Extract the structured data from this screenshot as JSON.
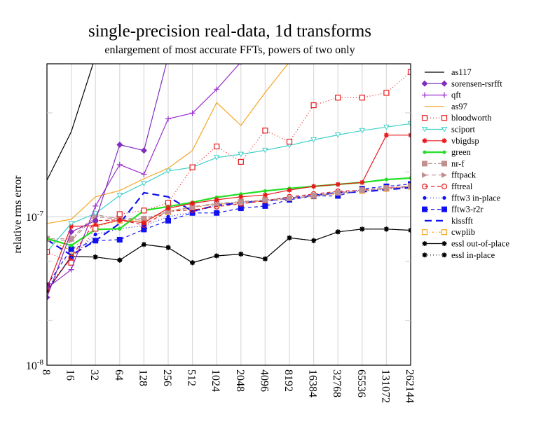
{
  "chart_data": {
    "type": "line",
    "title": "single-precision real-data, 1d transforms",
    "subtitle": "enlargement of most accurate FFTs, powers of two only",
    "xlabel": "",
    "ylabel": "relative rms error",
    "xscale": "log2",
    "yscale": "log10",
    "ylim": [
      1e-08,
      1.07e-06
    ],
    "grid": true,
    "legend_position": "right",
    "x": [
      8,
      16,
      32,
      64,
      128,
      256,
      512,
      1024,
      2048,
      4096,
      8192,
      16384,
      32768,
      65536,
      131072,
      262144
    ],
    "x_tick_labels": [
      "8",
      "16",
      "32",
      "64",
      "128",
      "256",
      "512",
      "1024",
      "2048",
      "4096",
      "8192",
      "16384",
      "32768",
      "65536",
      "131072",
      "262144"
    ],
    "y_tick_labels": [
      {
        "base": "10",
        "exp": "-7",
        "value": 1e-07
      },
      {
        "base": "10",
        "exp": "-8",
        "value": 1e-08
      }
    ],
    "series": [
      {
        "name": "as117",
        "color": "#000000",
        "dash": "",
        "marker": "none",
        "values": [
          1.76e-07,
          3.72e-07,
          1.2e-06,
          null,
          null,
          null,
          null,
          null,
          null,
          null,
          null,
          null,
          null,
          null,
          null,
          null
        ]
      },
      {
        "name": "sorensen-rsrfft",
        "color": "#7f2fbf",
        "dash": "",
        "marker": "diamond",
        "values": [
          2.86e-08,
          7.9e-08,
          9.4e-08,
          3.05e-07,
          2.79e-07,
          1.2e-06,
          null,
          null,
          null,
          null,
          null,
          null,
          null,
          null,
          null,
          null
        ]
      },
      {
        "name": "qft",
        "color": "#9b30d0",
        "dash": "",
        "marker": "plus",
        "values": [
          3.3e-08,
          4.4e-08,
          1.18e-07,
          2.24e-07,
          1.93e-07,
          4.56e-07,
          4.98e-07,
          7.21e-07,
          1.1e-06,
          null,
          null,
          null,
          null,
          null,
          null,
          null
        ]
      },
      {
        "name": "as97",
        "color": "#f5a623",
        "dash": "",
        "marker": "none",
        "values": [
          9e-08,
          9.6e-08,
          1.36e-07,
          1.5e-07,
          1.8e-07,
          2.12e-07,
          2.79e-07,
          5.86e-07,
          4.11e-07,
          6.86e-07,
          1.1e-06,
          null,
          null,
          null,
          null,
          null
        ]
      },
      {
        "name": "bloodworth",
        "color": "#e8191c",
        "dash": "1,3",
        "marker": "open-square",
        "values": [
          5.8e-08,
          4.9e-08,
          8.3e-08,
          1.04e-07,
          1.1e-07,
          1.24e-07,
          2.15e-07,
          2.97e-07,
          2.34e-07,
          3.8e-07,
          3.2e-07,
          5.63e-07,
          6.33e-07,
          6.33e-07,
          6.82e-07,
          9.42e-07
        ]
      },
      {
        "name": "sciport",
        "color": "#40d0c8",
        "dash": "",
        "marker": "triangle-down",
        "values": [
          5.8e-08,
          9e-08,
          1.05e-07,
          1.39e-07,
          1.67e-07,
          2.03e-07,
          2.15e-07,
          2.5e-07,
          2.63e-07,
          2.8e-07,
          3.02e-07,
          3.29e-07,
          3.55e-07,
          3.8e-07,
          4.01e-07,
          4.23e-07
        ]
      },
      {
        "name": "vbigdsp",
        "color": "#e8191c",
        "dash": "",
        "marker": "star",
        "values": [
          3.3e-08,
          8.6e-08,
          8.7e-08,
          9.5e-08,
          9.1e-08,
          1.14e-07,
          1.23e-07,
          1.3e-07,
          1.36e-07,
          1.4e-07,
          1.51e-07,
          1.6e-07,
          1.65e-07,
          1.7e-07,
          3.54e-07,
          3.54e-07
        ]
      },
      {
        "name": "green",
        "color": "#22e022",
        "dash": "",
        "marker": "dot",
        "values": [
          7.1e-08,
          6.4e-08,
          8.2e-08,
          8.3e-08,
          1.1e-07,
          1.17e-07,
          1.25e-07,
          1.35e-07,
          1.42e-07,
          1.49e-07,
          1.55e-07,
          1.6e-07,
          1.65e-07,
          1.7e-07,
          1.78e-07,
          1.82e-07
        ]
      },
      {
        "name": "nr-f",
        "color": "#c09090",
        "dash": "2,3,6,3",
        "marker": "filled-square",
        "values": [
          7.1e-08,
          7.1e-08,
          1.03e-07,
          9.7e-08,
          9.7e-08,
          1.09e-07,
          1.17e-07,
          1.23e-07,
          1.26e-07,
          1.3e-07,
          1.33e-07,
          1.39e-07,
          1.45e-07,
          1.51e-07,
          1.56e-07,
          1.61e-07
        ]
      },
      {
        "name": "fftpack",
        "color": "#c09090",
        "dash": "6,4",
        "marker": "triangle-right",
        "values": [
          7e-08,
          6.9e-08,
          1e-07,
          9.6e-08,
          9.5e-08,
          1.08e-07,
          1.16e-07,
          1.22e-07,
          1.25e-07,
          1.29e-07,
          1.32e-07,
          1.38e-07,
          1.44e-07,
          1.5e-07,
          1.55e-07,
          1.6e-07
        ]
      },
      {
        "name": "fftreal",
        "color": "#e8191c",
        "dash": "5,4",
        "marker": "open-circle",
        "values": [
          3.2e-08,
          5.3e-08,
          9.4e-08,
          9.5e-08,
          8.8e-08,
          1.09e-07,
          1.11e-07,
          1.17e-07,
          1.22e-07,
          1.28e-07,
          1.36e-07,
          1.42e-07,
          1.48e-07,
          1.51e-07,
          1.56e-07,
          1.6e-07
        ]
      },
      {
        "name": "fftw3 in-place",
        "color": "#1010f0",
        "dash": "1,3",
        "marker": "dot",
        "values": [
          3.3e-08,
          5.3e-08,
          7.6e-08,
          8.3e-08,
          8.7e-08,
          1e-07,
          1.07e-07,
          1.2e-07,
          1.26e-07,
          1.3e-07,
          1.33e-07,
          1.38e-07,
          1.46e-07,
          1.49e-07,
          1.53e-07,
          1.58e-07
        ]
      },
      {
        "name": "fftw3-r2r",
        "color": "#1010f0",
        "dash": "5,4",
        "marker": "filled-square",
        "values": [
          3.45e-08,
          6.05e-08,
          6.9e-08,
          7e-08,
          8.2e-08,
          9.4e-08,
          1.06e-07,
          1.06e-07,
          1.14e-07,
          1.18e-07,
          1.3e-07,
          1.38e-07,
          1.38e-07,
          1.54e-07,
          1.6e-07,
          1.66e-07
        ]
      },
      {
        "name": "kissfft",
        "color": "#1010f0",
        "dash": "10,6",
        "marker": "none",
        "values": [
          7e-08,
          5.5e-08,
          6.9e-08,
          9e-08,
          1.45e-07,
          1.36e-07,
          1.09e-07,
          1.19e-07,
          1.24e-07,
          1.28e-07,
          1.33e-07,
          1.39e-07,
          1.45e-07,
          1.47e-07,
          1.52e-07,
          1.57e-07
        ]
      },
      {
        "name": "cwplib",
        "color": "#f5a623",
        "dash": "3,3,1,3",
        "marker": "open-square",
        "values": [
          7.1e-08,
          5.9e-08,
          8.6e-08,
          9.4e-08,
          9.4e-08,
          1.07e-07,
          1.15e-07,
          1.21e-07,
          1.24e-07,
          1.28e-07,
          1.31e-07,
          1.37e-07,
          1.43e-07,
          1.49e-07,
          1.54e-07,
          1.59e-07
        ]
      },
      {
        "name": "essl out-of-place",
        "color": "#000000",
        "dash": "",
        "marker": "star",
        "values": [
          3.15e-08,
          5.4e-08,
          5.35e-08,
          5.1e-08,
          6.5e-08,
          6.2e-08,
          4.9e-08,
          5.45e-08,
          5.6e-08,
          5.2e-08,
          7.2e-08,
          6.9e-08,
          7.9e-08,
          8.25e-08,
          8.25e-08,
          8.1e-08
        ]
      },
      {
        "name": "essl in-place",
        "color": "#000000",
        "dash": "1,3",
        "marker": "star",
        "values": [
          3.15e-08,
          5.4e-08,
          5.35e-08,
          5.1e-08,
          6.5e-08,
          6.2e-08,
          4.9e-08,
          5.45e-08,
          5.6e-08,
          5.2e-08,
          7.2e-08,
          6.9e-08,
          7.9e-08,
          8.25e-08,
          8.25e-08,
          8.1e-08
        ]
      }
    ]
  }
}
